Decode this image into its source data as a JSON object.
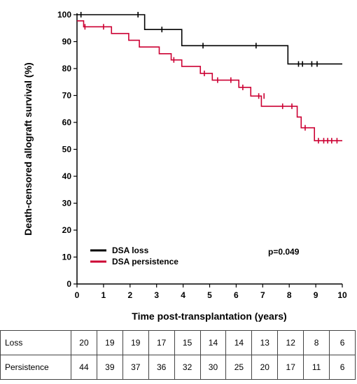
{
  "chart_data": {
    "type": "line",
    "subtype": "kaplan-meier step",
    "xlabel": "Time post-transplantation (years)",
    "ylabel": "Death-censored allograft survival (%)",
    "xlim": [
      0,
      10
    ],
    "ylim": [
      0,
      100
    ],
    "xticks": [
      "0",
      "1",
      "2",
      "3",
      "4",
      "5",
      "6",
      "7",
      "8",
      "9",
      "10"
    ],
    "yticks": [
      "0",
      "10",
      "20",
      "30",
      "40",
      "50",
      "60",
      "70",
      "80",
      "90",
      "100"
    ],
    "grid": false,
    "legend_position": "bottom-left",
    "annotation": "p=0.049",
    "series": [
      {
        "name": "DSA loss",
        "color": "#000000",
        "steps": [
          [
            0,
            100
          ],
          [
            2.55,
            94.5
          ],
          [
            3.95,
            88.5
          ],
          [
            7.95,
            81.7
          ],
          [
            10,
            81.7
          ]
        ],
        "censored": [
          [
            0.15,
            100
          ],
          [
            2.3,
            100
          ],
          [
            3.2,
            94.5
          ],
          [
            4.75,
            88.5
          ],
          [
            6.75,
            88.5
          ],
          [
            8.35,
            81.7
          ],
          [
            8.5,
            81.7
          ],
          [
            8.85,
            81.7
          ],
          [
            9.05,
            81.7
          ]
        ]
      },
      {
        "name": "DSA persistence",
        "color": "#cc0033",
        "steps": [
          [
            0,
            97.7
          ],
          [
            0.25,
            95.5
          ],
          [
            1.3,
            93
          ],
          [
            1.95,
            90.5
          ],
          [
            2.35,
            88
          ],
          [
            3.1,
            85.5
          ],
          [
            3.55,
            83.2
          ],
          [
            3.95,
            80.8
          ],
          [
            4.65,
            78.2
          ],
          [
            5.1,
            75.7
          ],
          [
            6.1,
            73
          ],
          [
            6.55,
            69.8
          ],
          [
            6.95,
            66
          ],
          [
            8.3,
            62
          ],
          [
            8.45,
            58
          ],
          [
            8.95,
            53.2
          ],
          [
            10,
            53.2
          ]
        ],
        "censored": [
          [
            0.3,
            95.5
          ],
          [
            1,
            95.5
          ],
          [
            3.65,
            83.2
          ],
          [
            4.8,
            78.2
          ],
          [
            5.3,
            75.7
          ],
          [
            5.8,
            75.7
          ],
          [
            6.25,
            73
          ],
          [
            6.85,
            69.8
          ],
          [
            7.05,
            69.8
          ],
          [
            7.75,
            66
          ],
          [
            8.1,
            66
          ],
          [
            8.6,
            58
          ],
          [
            9.1,
            53.2
          ],
          [
            9.3,
            53.2
          ],
          [
            9.45,
            53.2
          ],
          [
            9.6,
            53.2
          ],
          [
            9.8,
            53.2
          ]
        ]
      }
    ]
  },
  "risk_table": {
    "rows": [
      {
        "label": "Loss",
        "values": [
          "20",
          "19",
          "19",
          "17",
          "15",
          "14",
          "14",
          "13",
          "12",
          "8",
          "6"
        ]
      },
      {
        "label": "Persistence",
        "values": [
          "44",
          "39",
          "37",
          "36",
          "32",
          "30",
          "25",
          "20",
          "17",
          "11",
          "6"
        ]
      }
    ]
  }
}
